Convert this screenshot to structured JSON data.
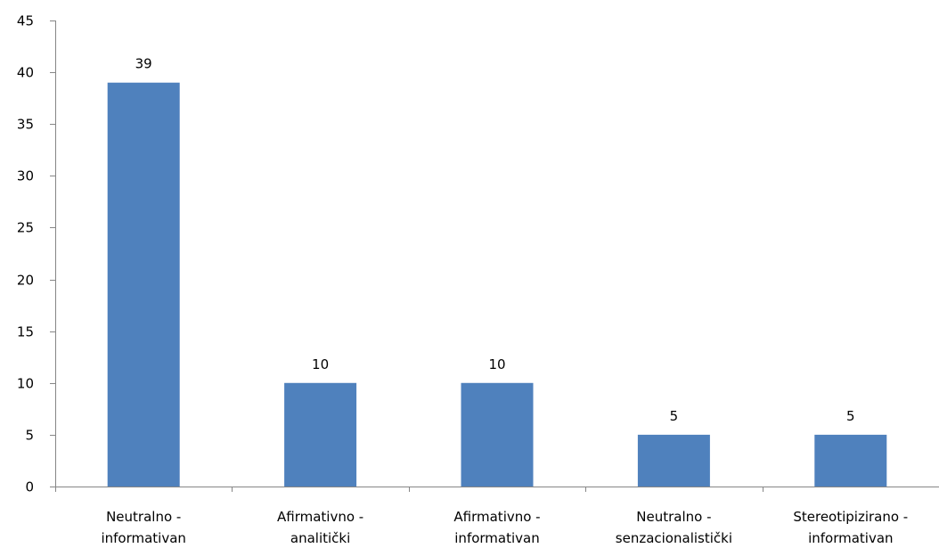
{
  "chart_data": {
    "type": "bar",
    "title": "",
    "xlabel": "",
    "ylabel": "",
    "categories": [
      [
        "Neutralno -",
        "informativan"
      ],
      [
        "Afirmativno -",
        "analitički"
      ],
      [
        "Afirmativno -",
        "informativan"
      ],
      [
        "Neutralno -",
        "senzacionalistički"
      ],
      [
        "Stereotipizirano -",
        "informativan"
      ]
    ],
    "values": [
      39,
      10,
      10,
      5,
      5
    ],
    "data_labels": [
      "39",
      "10",
      "10",
      "5",
      "5"
    ],
    "ylim": [
      0,
      45
    ],
    "y_ticks": [
      "0",
      "5",
      "10",
      "15",
      "20",
      "25",
      "30",
      "35",
      "40",
      "45"
    ],
    "grid": false,
    "legend": "none",
    "bar_color": "#4F81BD",
    "axis_color": "#868686"
  }
}
